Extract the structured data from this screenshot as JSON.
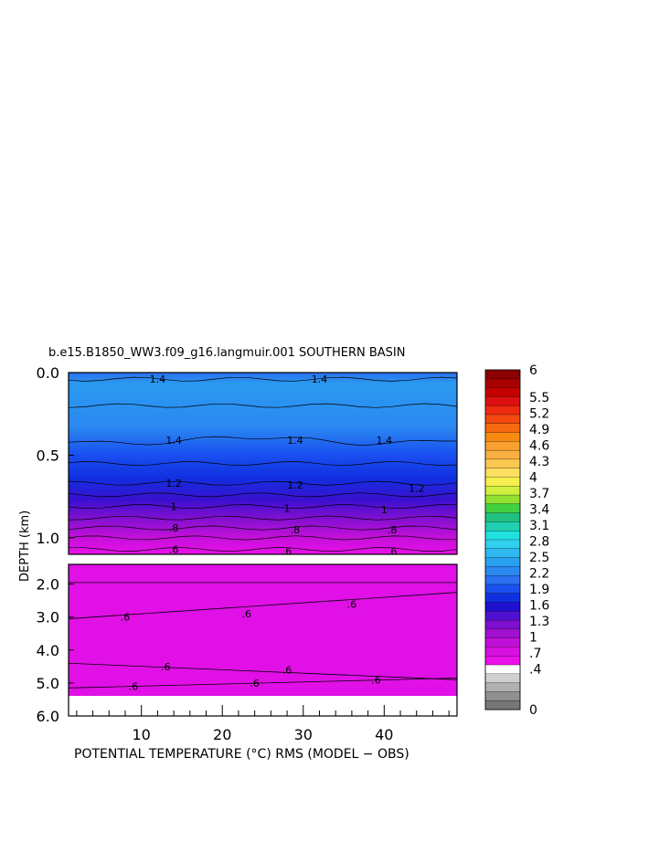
{
  "chart_data": {
    "type": "heatmap",
    "title": "b.e15.B1850_WW3.f09_g16.langmuir.001 SOUTHERN BASIN",
    "xlabel": "POTENTIAL TEMPERATURE (°C) RMS (MODEL − OBS)",
    "ylabel": "DEPTH (km)",
    "xlim": [
      1,
      49
    ],
    "x_ticks": [
      "10",
      "20",
      "30",
      "40"
    ],
    "x_tick_values": [
      10,
      20,
      30,
      40
    ],
    "upper_panel": {
      "ylim": [
        0.0,
        1.1
      ],
      "y_ticks": [
        "0.0",
        "0.5",
        "1.0"
      ],
      "y_tick_values": [
        0.0,
        0.5,
        1.0
      ]
    },
    "lower_panel": {
      "ylim": [
        1.4,
        6.0
      ],
      "y_ticks": [
        "2.0",
        "3.0",
        "4.0",
        "5.0",
        "6.0"
      ],
      "y_tick_values": [
        2.0,
        3.0,
        4.0,
        5.0,
        6.0
      ]
    },
    "contour_labels": {
      "upper": [
        {
          "text": "1.4",
          "x": 12,
          "depth": 0.04
        },
        {
          "text": "1.4",
          "x": 32,
          "depth": 0.04
        },
        {
          "text": "1.4",
          "x": 14,
          "depth": 0.41
        },
        {
          "text": "1.4",
          "x": 29,
          "depth": 0.41
        },
        {
          "text": "1.4",
          "x": 40,
          "depth": 0.41
        },
        {
          "text": "1.2",
          "x": 14,
          "depth": 0.67
        },
        {
          "text": "1.2",
          "x": 29,
          "depth": 0.68
        },
        {
          "text": "1.2",
          "x": 44,
          "depth": 0.7
        },
        {
          "text": "1",
          "x": 14,
          "depth": 0.81
        },
        {
          "text": "1",
          "x": 28,
          "depth": 0.82
        },
        {
          "text": "1",
          "x": 40,
          "depth": 0.83
        },
        {
          "text": ".8",
          "x": 14,
          "depth": 0.94
        },
        {
          "text": ".8",
          "x": 29,
          "depth": 0.95
        },
        {
          "text": ".8",
          "x": 41,
          "depth": 0.95
        },
        {
          "text": ".6",
          "x": 14,
          "depth": 1.07
        },
        {
          "text": ".6",
          "x": 28,
          "depth": 1.08
        },
        {
          "text": ".6",
          "x": 41,
          "depth": 1.08
        }
      ],
      "lower": [
        {
          "text": ".6",
          "x": 8,
          "depth": 3.0
        },
        {
          "text": ".6",
          "x": 23,
          "depth": 2.9
        },
        {
          "text": ".6",
          "x": 36,
          "depth": 2.6
        },
        {
          "text": ".6",
          "x": 13,
          "depth": 4.5
        },
        {
          "text": ".6",
          "x": 28,
          "depth": 4.6
        },
        {
          "text": ".6",
          "x": 39,
          "depth": 4.9
        },
        {
          "text": ".6",
          "x": 9,
          "depth": 5.1
        },
        {
          "text": ".6",
          "x": 24,
          "depth": 5.0
        }
      ]
    },
    "colorbar": {
      "labels": [
        "6",
        "5.5",
        "5.2",
        "4.9",
        "4.6",
        "4.3",
        "4",
        "3.7",
        "3.4",
        "3.1",
        "2.8",
        "2.5",
        "2.2",
        "1.9",
        "1.6",
        "1.3",
        "1",
        ".7",
        ".4",
        "0"
      ],
      "colors_top_to_bottom": [
        "#8b0000",
        "#a80000",
        "#c40000",
        "#dc1010",
        "#ee2a10",
        "#f24a10",
        "#f56a10",
        "#f88a10",
        "#f8a030",
        "#f8b040",
        "#fbc850",
        "#fde060",
        "#f7f050",
        "#d0f040",
        "#90e030",
        "#40d040",
        "#20c080",
        "#20d0b0",
        "#20e0e0",
        "#30d0f0",
        "#30b8f0",
        "#2aa0f0",
        "#2a88f0",
        "#2a70f0",
        "#1a50f0",
        "#1030e0",
        "#2010d0",
        "#5010d0",
        "#8010d0",
        "#a010d0",
        "#c010d8",
        "#d810e0",
        "#ea10ea",
        "#ffffff",
        "#d0d0d0",
        "#b0b0b0",
        "#909090",
        "#777777"
      ]
    }
  }
}
